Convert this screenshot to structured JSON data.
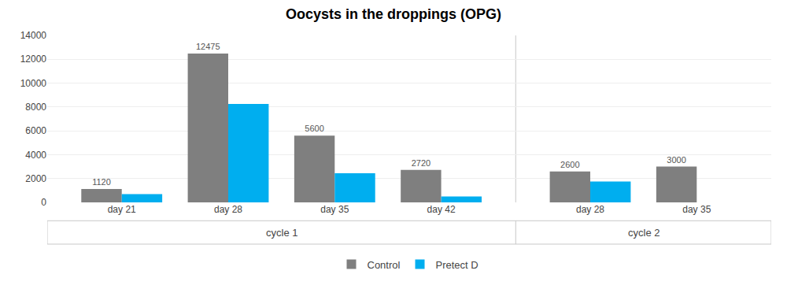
{
  "chart_data": {
    "type": "bar",
    "title": "Oocysts in the droppings (OPG)",
    "categories": [
      "day 21",
      "day 28",
      "day 35",
      "day 42",
      "day 28",
      "day 35"
    ],
    "cycles": [
      "cycle 1",
      "cycle 1",
      "cycle 1",
      "cycle 1",
      "cycle 2",
      "cycle 2"
    ],
    "series": [
      {
        "name": "Control",
        "color": "#7f7f7f",
        "values": [
          1120,
          12475,
          5600,
          2720,
          2600,
          3000
        ],
        "data_labels": true
      },
      {
        "name": "Pretect D",
        "color": "#00aeef",
        "values": [
          700,
          8250,
          2450,
          500,
          1750,
          null
        ]
      }
    ],
    "ylim": [
      0,
      14000
    ],
    "yticks": [
      0,
      2000,
      4000,
      6000,
      8000,
      10000,
      12000,
      14000
    ],
    "grid": true,
    "legend": "bottom"
  }
}
